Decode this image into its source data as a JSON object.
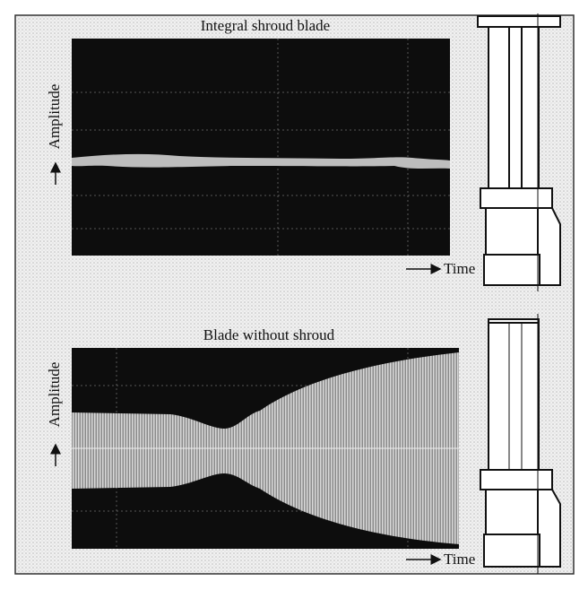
{
  "panels": [
    {
      "title": "Integral shroud blade",
      "y_label": "Amplitude",
      "x_label": "Time"
    },
    {
      "title": "Blade without shroud",
      "y_label": "Amplitude",
      "x_label": "Time"
    }
  ]
}
